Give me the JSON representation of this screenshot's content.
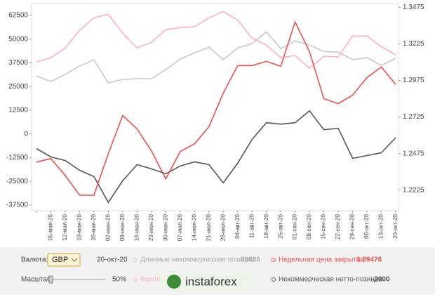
{
  "chart_data": {
    "type": "line",
    "categories": [
      null,
      "05-мая-20",
      "12-мая-20",
      "19-мая-20",
      "26-мая-20",
      "02-июн-20",
      "09-июн-20",
      "16-июн-20",
      "23-июн-20",
      "30-июн-20",
      "07-июл-20",
      "14-июл-20",
      "21-июл-20",
      "28-июл-20",
      "04-авг-20",
      "11-авг-20",
      "18-авг-20",
      "25-авг-20",
      "01-сен-20",
      "08-сен-20",
      "15-сен-20",
      "22-сен-20",
      "29-сен-20",
      "06-окт-20",
      "13-окт-20",
      "20-окт-20"
    ],
    "series": [
      {
        "name": "Некоммерческая нетто-позиция",
        "color": "#555555",
        "values": [
          -7740,
          -12170,
          -14010,
          -19170,
          -22490,
          -36140,
          -24700,
          -16220,
          -18440,
          -21020,
          -16960,
          -14750,
          -16220,
          -25810,
          -15490,
          -2950,
          5900,
          5160,
          5900,
          12170,
          2210,
          2950,
          -12900,
          -11430,
          -9960,
          -2000
        ]
      },
      {
        "name": "Длинные некоммерческие позиции",
        "color": "#c8c8c8",
        "values": [
          30600,
          27650,
          31340,
          35770,
          39090,
          26920,
          28760,
          29130,
          29130,
          33920,
          39450,
          42770,
          45720,
          39090,
          45350,
          47570,
          53830,
          44990,
          49040,
          46830,
          43510,
          43140,
          39090,
          40190,
          36140,
          39836
        ]
      },
      {
        "name": "Короткие некоммерческие позиции",
        "color": "#ffb3b8",
        "values": [
          37980,
          40190,
          45350,
          54570,
          61210,
          63050,
          53100,
          45350,
          48300,
          54940,
          56050,
          56420,
          61210,
          64530,
          60100,
          50520,
          46830,
          40190,
          41300,
          34660,
          40930,
          40560,
          51620,
          51620,
          46090,
          41670
        ]
      },
      {
        "name": "Недельная цена закрытия",
        "color": "#f0504f",
        "axis": "y2",
        "values": [
          1.2417,
          1.2441,
          1.2326,
          1.2191,
          1.2191,
          1.2475,
          1.2735,
          1.2643,
          1.2494,
          1.2302,
          1.2489,
          1.2542,
          1.2658,
          1.2888,
          1.3076,
          1.3076,
          1.3105,
          1.3071,
          1.3374,
          1.3172,
          1.285,
          1.2816,
          1.2874,
          1.2994,
          1.3066,
          1.29476
        ]
      }
    ],
    "ylim": [
      -40500,
      68750
    ],
    "yticks": [
      -37500,
      -25000,
      -12500,
      0,
      12500,
      25000,
      37500,
      50000,
      62500
    ],
    "y2lim": [
      1.2085,
      1.35
    ],
    "y2ticks": [
      1.2225,
      1.2475,
      1.2725,
      1.2975,
      1.3225,
      1.3475
    ]
  },
  "controls": {
    "currency_label": "Валюта:",
    "currency": "GBP",
    "scale_label": "Масштаб:",
    "scale": "50%"
  },
  "watermark": "instaforex"
}
